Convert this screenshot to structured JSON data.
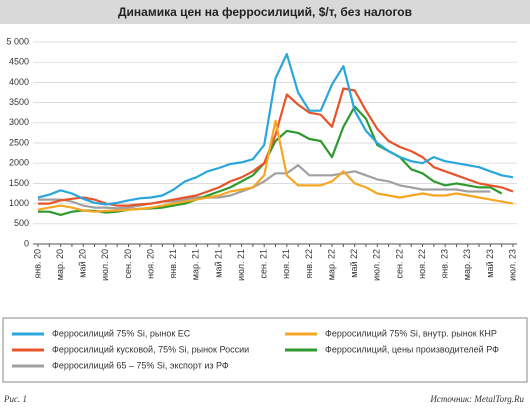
{
  "chart_data": {
    "type": "line",
    "title": "Динамика цен на ферросилиций, $/т, без налогов",
    "categories": [
      "янв. 20",
      null,
      "мар. 20",
      null,
      "май 20",
      null,
      "июл. 20",
      null,
      "сен. 20",
      null,
      "ноя. 20",
      null,
      "янв. 21",
      null,
      "мар. 21",
      null,
      "май 21",
      null,
      "июл. 21",
      null,
      "сен. 21",
      null,
      "ноя. 21",
      null,
      "янв. 22",
      null,
      "мар. 22",
      null,
      "май 22",
      null,
      "июл. 22",
      null,
      "сен. 22",
      null,
      "ноя. 22",
      null,
      "янв. 23",
      null,
      "мар. 23",
      null,
      "май 23",
      null,
      "июл. 23"
    ],
    "series": [
      {
        "name": "Ферросилиций 75% Si, рынок ЕС",
        "color": "#2aa6dc",
        "values": [
          1150,
          1220,
          1330,
          1250,
          1120,
          1020,
          980,
          1020,
          1080,
          1130,
          1150,
          1200,
          1350,
          1550,
          1650,
          1800,
          1880,
          1980,
          2020,
          2100,
          2450,
          4100,
          4700,
          3750,
          3300,
          3300,
          3950,
          4400,
          3300,
          2800,
          2500,
          2300,
          2150,
          2050,
          2000,
          2150,
          2050,
          2000,
          1950,
          1900,
          1800,
          1700,
          1650
        ]
      },
      {
        "name": "Ферросилиций 75% Si, внутр. рынок КНР",
        "color": "#f5a623",
        "values": [
          850,
          900,
          950,
          900,
          830,
          800,
          820,
          830,
          850,
          870,
          900,
          950,
          1000,
          1050,
          1100,
          1150,
          1200,
          1300,
          1350,
          1400,
          1700,
          3050,
          1700,
          1450,
          1450,
          1450,
          1550,
          1800,
          1500,
          1400,
          1250,
          1200,
          1150,
          1200,
          1250,
          1200,
          1200,
          1250,
          1200,
          1150,
          1100,
          1050,
          1000
        ]
      },
      {
        "name": "Ферросилиций кусковой, 75% Si, рынок России",
        "color": "#e8542a",
        "values": [
          1000,
          1000,
          1080,
          1120,
          1150,
          1100,
          1000,
          950,
          950,
          980,
          1000,
          1050,
          1100,
          1150,
          1200,
          1300,
          1400,
          1550,
          1650,
          1800,
          2000,
          2700,
          3700,
          3450,
          3250,
          3200,
          2900,
          3850,
          3800,
          3300,
          2850,
          2550,
          2400,
          2300,
          2150,
          1900,
          1800,
          1700,
          1600,
          1500,
          1450,
          1400,
          1300
        ]
      },
      {
        "name": "Ферросилиций, цены производителей РФ",
        "color": "#2e9a2e",
        "values": [
          800,
          800,
          720,
          800,
          830,
          820,
          780,
          800,
          850,
          870,
          880,
          900,
          950,
          1000,
          1100,
          1200,
          1300,
          1400,
          1550,
          1700,
          2000,
          2550,
          2800,
          2750,
          2600,
          2550,
          2150,
          2900,
          3400,
          3100,
          2450,
          2300,
          2150,
          1850,
          1750,
          1550,
          1450,
          1500,
          1450,
          1400,
          1400,
          1250,
          null
        ]
      },
      {
        "name": "Ферросилиций 65 – 75% Si, экспорт из РФ",
        "color": "#a0a0a0",
        "values": [
          1100,
          1100,
          1100,
          1050,
          950,
          900,
          900,
          880,
          900,
          950,
          1000,
          1050,
          1050,
          1100,
          1150,
          1150,
          1150,
          1200,
          1300,
          1400,
          1550,
          1750,
          1750,
          1950,
          1700,
          1700,
          1700,
          1750,
          1800,
          1700,
          1600,
          1550,
          1450,
          1400,
          1350,
          1350,
          1350,
          1350,
          1300,
          1300,
          1300,
          null,
          null
        ]
      }
    ],
    "ylim": [
      0,
      5000
    ],
    "yticks": [
      0,
      500,
      1000,
      1500,
      2000,
      2500,
      3000,
      3500,
      4000,
      4500,
      {
        "value": 5000,
        "label": "5 000"
      }
    ],
    "grid": true,
    "figure_label": "Рис. 1",
    "source": "Источник: MetalTorg.Ru"
  }
}
